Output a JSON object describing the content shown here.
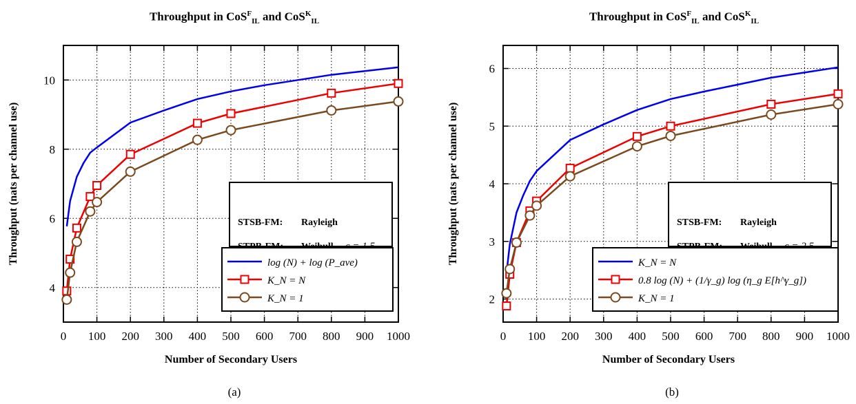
{
  "figure": {
    "panels": [
      {
        "id": "a",
        "title_prefix": "Throughput in CoS",
        "title_sub": "IL",
        "title_sup_1": "F",
        "title_and": "and CoS",
        "title_sup_2": "K",
        "letter": "(a)"
      },
      {
        "id": "b",
        "title_prefix": "Throughput in CoS",
        "title_sub": "IL",
        "title_sup_1": "F",
        "title_and": "and CoS",
        "title_sup_2": "K",
        "letter": "(b)"
      }
    ]
  },
  "chart_data": [
    {
      "type": "line",
      "xlabel": "Number of Secondary Users",
      "ylabel": "Throughput (nats per channel use)",
      "xlim": [
        0,
        1000
      ],
      "ylim": [
        3,
        11
      ],
      "xticks": [
        0,
        100,
        200,
        300,
        400,
        500,
        600,
        700,
        800,
        900,
        1000
      ],
      "yticks": [
        4,
        6,
        8,
        10
      ],
      "grid": true,
      "legend_position": "lower-right",
      "annotation_box": {
        "line1_label": "STSB-FM:",
        "line1_value": "Rayleigh",
        "line2_label": "STPB-FM:",
        "line2_value": "Weibull",
        "line2_param": "c = 1.5"
      },
      "series": [
        {
          "name": "log (N) + log (P_ave)",
          "color": "#0000ee",
          "marker": "none",
          "x": [
            10,
            20,
            40,
            60,
            80,
            100,
            200,
            300,
            400,
            500,
            600,
            700,
            800,
            900,
            1000
          ],
          "y": [
            5.77,
            6.5,
            7.2,
            7.6,
            7.9,
            8.05,
            8.77,
            9.12,
            9.45,
            9.67,
            9.85,
            10.0,
            10.15,
            10.26,
            10.37
          ]
        },
        {
          "name": "K_N = N",
          "color": "#ee0000",
          "marker": "square",
          "x": [
            10,
            20,
            40,
            80,
            100,
            200,
            400,
            500,
            800,
            1000
          ],
          "y": [
            3.9,
            4.82,
            5.72,
            6.63,
            6.95,
            7.85,
            8.75,
            9.03,
            9.62,
            9.9
          ]
        },
        {
          "name": "K_N = 1",
          "color": "#7a4a1e",
          "marker": "circle",
          "x": [
            10,
            20,
            40,
            80,
            100,
            200,
            400,
            500,
            800,
            1000
          ],
          "y": [
            3.65,
            4.43,
            5.32,
            6.2,
            6.47,
            7.35,
            8.27,
            8.55,
            9.12,
            9.38
          ]
        }
      ]
    },
    {
      "type": "line",
      "xlabel": "Number of Secondary Users",
      "ylabel": "Throughput (nats per channel use)",
      "xlim": [
        0,
        1000
      ],
      "ylim": [
        1.6,
        6.4
      ],
      "xticks": [
        0,
        100,
        200,
        300,
        400,
        500,
        600,
        700,
        800,
        900,
        1000
      ],
      "yticks": [
        2,
        3,
        4,
        5,
        6
      ],
      "grid": true,
      "legend_position": "lower-right",
      "annotation_box": {
        "line1_label": "STSB-FM:",
        "line1_value": "Rayleigh",
        "line2_label": "STPB-FM:",
        "line2_value": "Weibull",
        "line2_param": "c = 2.5"
      },
      "series": [
        {
          "name": "K_N = N",
          "color": "#0000ee",
          "marker": "none",
          "x": [
            10,
            20,
            40,
            60,
            80,
            100,
            200,
            300,
            400,
            500,
            600,
            700,
            800,
            900,
            1000
          ],
          "y": [
            2.45,
            2.95,
            3.5,
            3.8,
            4.05,
            4.22,
            4.76,
            5.03,
            5.28,
            5.47,
            5.6,
            5.72,
            5.84,
            5.93,
            6.02
          ]
        },
        {
          "name": "0.8 log (N) + (1/γ_g) log (η_g E[h^γ_g])",
          "color": "#ee0000",
          "marker": "square",
          "x": [
            10,
            20,
            40,
            80,
            100,
            200,
            400,
            500,
            800,
            1000
          ],
          "y": [
            1.88,
            2.43,
            2.98,
            3.53,
            3.7,
            4.27,
            4.82,
            5.0,
            5.38,
            5.56
          ]
        },
        {
          "name": "K_N = 1",
          "color": "#7a4a1e",
          "marker": "circle",
          "x": [
            10,
            20,
            40,
            80,
            100,
            200,
            400,
            500,
            800,
            1000
          ],
          "y": [
            2.1,
            2.52,
            2.98,
            3.45,
            3.62,
            4.13,
            4.65,
            4.83,
            5.2,
            5.38
          ]
        }
      ]
    }
  ]
}
